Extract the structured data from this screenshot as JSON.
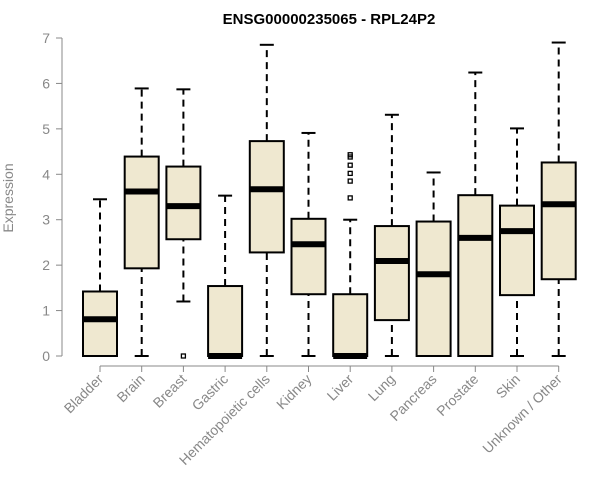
{
  "chart_data": {
    "type": "boxplot",
    "title": "ENSG00000235065 - RPL24P2",
    "ylabel": "Expression",
    "xlabel": "",
    "ylim": [
      0,
      7
    ],
    "yticks": [
      0,
      1,
      2,
      3,
      4,
      5,
      6,
      7
    ],
    "grid": false,
    "colors": {
      "box_fill": "#efe8d0",
      "box_stroke": "#000000",
      "axis": "#888888"
    },
    "categories": [
      "Bladder",
      "Brain",
      "Breast",
      "Gastric",
      "Hematopoietic cells",
      "Kidney",
      "Liver",
      "Lung",
      "Pancreas",
      "Prostate",
      "Skin",
      "Unknown / Other"
    ],
    "boxes": [
      {
        "category": "Bladder",
        "min": 0,
        "q1": 0,
        "median": 0.81,
        "q3": 1.42,
        "max": 3.45,
        "outliers": []
      },
      {
        "category": "Brain",
        "min": 0,
        "q1": 1.93,
        "median": 3.62,
        "q3": 4.39,
        "max": 5.89,
        "outliers": []
      },
      {
        "category": "Breast",
        "min": 1.2,
        "q1": 2.57,
        "median": 3.3,
        "q3": 4.17,
        "max": 5.87,
        "outliers": [
          0
        ]
      },
      {
        "category": "Gastric",
        "min": 0,
        "q1": 0,
        "median": 0,
        "q3": 1.54,
        "max": 3.53,
        "outliers": []
      },
      {
        "category": "Hematopoietic cells",
        "min": 0,
        "q1": 2.28,
        "median": 3.67,
        "q3": 4.73,
        "max": 6.85,
        "outliers": []
      },
      {
        "category": "Kidney",
        "min": 0,
        "q1": 1.36,
        "median": 2.46,
        "q3": 3.02,
        "max": 4.91,
        "outliers": []
      },
      {
        "category": "Liver",
        "min": 0,
        "q1": 0,
        "median": 0,
        "q3": 1.36,
        "max": 3.0,
        "outliers": [
          3.48,
          3.85,
          4.02,
          4.2,
          4.38,
          4.43
        ]
      },
      {
        "category": "Lung",
        "min": 0,
        "q1": 0.79,
        "median": 2.09,
        "q3": 2.86,
        "max": 5.31,
        "outliers": []
      },
      {
        "category": "Pancreas",
        "min": 0,
        "q1": 0,
        "median": 1.8,
        "q3": 2.96,
        "max": 4.04,
        "outliers": []
      },
      {
        "category": "Prostate",
        "min": 0,
        "q1": 0,
        "median": 2.6,
        "q3": 3.54,
        "max": 6.24,
        "outliers": []
      },
      {
        "category": "Skin",
        "min": 0,
        "q1": 1.34,
        "median": 2.75,
        "q3": 3.31,
        "max": 5.01,
        "outliers": []
      },
      {
        "category": "Unknown / Other",
        "min": 0,
        "q1": 1.69,
        "median": 3.34,
        "q3": 4.26,
        "max": 6.9,
        "outliers": []
      }
    ]
  }
}
